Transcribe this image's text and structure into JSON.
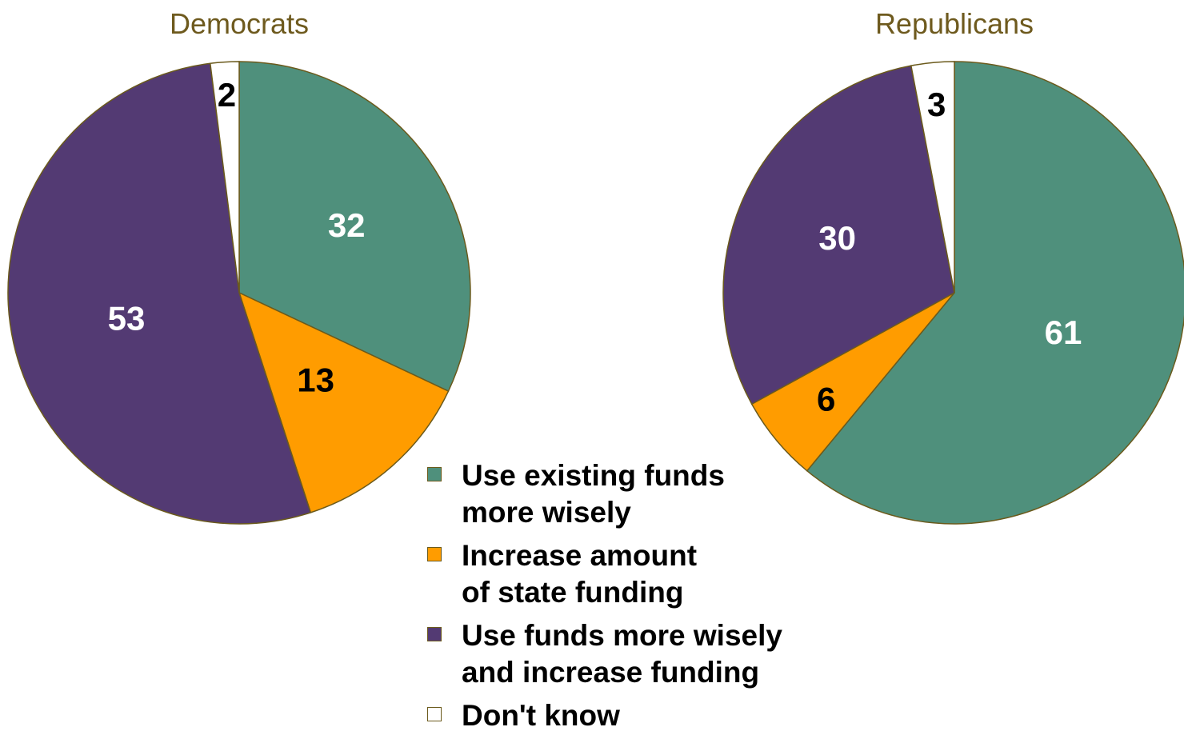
{
  "colors": {
    "existing": "#4f907c",
    "increase": "#ff9c00",
    "both": "#533a73",
    "dontknow": "#ffffff",
    "outline": "#6b5a1c",
    "title": "#6e5a1e"
  },
  "legend": [
    {
      "label": "Use existing funds\nmore wisely",
      "color_key": "existing"
    },
    {
      "label": "Increase amount\nof state funding",
      "color_key": "increase"
    },
    {
      "label": "Use funds more wisely\nand increase funding",
      "color_key": "both"
    },
    {
      "label": "Don't know",
      "color_key": "dontknow"
    }
  ],
  "chart_data": [
    {
      "type": "pie",
      "title": "Democrats",
      "slices": [
        {
          "label": "Use existing funds more wisely",
          "value": 32,
          "display": "32",
          "color_key": "existing",
          "text_color": "#ffffff"
        },
        {
          "label": "Increase amount of state funding",
          "value": 13,
          "display": "13",
          "color_key": "increase",
          "text_color": "#000000"
        },
        {
          "label": "Use funds more wisely and increase funding",
          "value": 53,
          "display": "53",
          "color_key": "both",
          "text_color": "#ffffff"
        },
        {
          "label": "Don't know",
          "value": 2,
          "display": "2",
          "color_key": "dontknow",
          "text_color": "#000000"
        }
      ]
    },
    {
      "type": "pie",
      "title": "Republicans",
      "slices": [
        {
          "label": "Use existing funds more wisely",
          "value": 61,
          "display": "61",
          "color_key": "existing",
          "text_color": "#ffffff"
        },
        {
          "label": "Increase amount of state funding",
          "value": 6,
          "display": "6",
          "color_key": "increase",
          "text_color": "#000000"
        },
        {
          "label": "Use funds more wisely and increase funding",
          "value": 30,
          "display": "30",
          "color_key": "both",
          "text_color": "#ffffff"
        },
        {
          "label": "Don't know",
          "value": 3,
          "display": "3",
          "color_key": "dontknow",
          "text_color": "#000000"
        }
      ]
    }
  ]
}
